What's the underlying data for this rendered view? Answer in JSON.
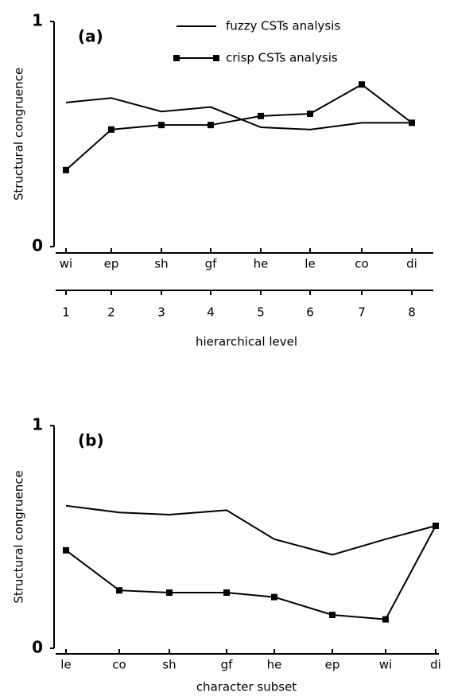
{
  "chart_data": [
    {
      "type": "line",
      "panel_label": "(a)",
      "ylabel": "Structural congruence",
      "categories": [
        "wi",
        "ep",
        "sh",
        "gf",
        "he",
        "le",
        "co",
        "di"
      ],
      "levels": [
        1,
        2,
        3,
        4,
        5,
        6,
        7,
        8
      ],
      "xlabel": "hierarchical level",
      "ylim": [
        0,
        1
      ],
      "yticks": [
        0,
        1
      ],
      "series": [
        {
          "name": "fuzzy CSTs analysis",
          "color": "#000000",
          "marker": "none",
          "values": [
            0.64,
            0.66,
            0.6,
            0.62,
            0.53,
            0.52,
            0.55,
            0.55
          ]
        },
        {
          "name": "crisp CSTs analysis",
          "color": "#000000",
          "marker": "square",
          "values": [
            0.34,
            0.52,
            0.54,
            0.54,
            0.58,
            0.59,
            0.72,
            0.55
          ]
        }
      ]
    },
    {
      "type": "line",
      "panel_label": "(b)",
      "ylabel": "Structural congruence",
      "categories": [
        "le",
        "co",
        "sh",
        "gf",
        "he",
        "ep",
        "wi",
        "di"
      ],
      "xlabel": "character subset",
      "ylim": [
        0,
        1
      ],
      "yticks": [
        0,
        1
      ],
      "series": [
        {
          "color": "#000000",
          "marker": "none",
          "values": [
            0.64,
            0.61,
            0.6,
            0.62,
            0.49,
            0.42,
            0.49,
            0.55
          ]
        },
        {
          "color": "#000000",
          "marker": "square",
          "values": [
            0.44,
            0.26,
            0.25,
            0.25,
            0.23,
            0.15,
            0.13,
            0.55
          ]
        }
      ]
    }
  ]
}
